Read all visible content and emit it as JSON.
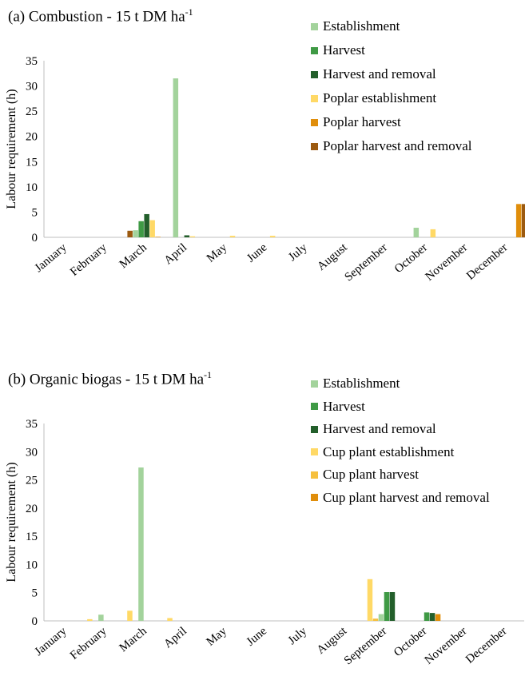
{
  "chart_data": [
    {
      "type": "bar",
      "title_main": "(a) Combustion - 15 t DM ha",
      "title_sup": "-1",
      "ylabel": "Labour requirement (h)",
      "ylim": [
        0,
        35
      ],
      "yticks": [
        "0",
        "5",
        "10",
        "15",
        "20",
        "25",
        "30",
        "35"
      ],
      "categories": [
        "January",
        "February",
        "March",
        "April",
        "May",
        "June",
        "July",
        "August",
        "September",
        "October",
        "November",
        "December"
      ],
      "legend_position": "top-right",
      "series": [
        {
          "name": "Poplar harvest and removal",
          "color": "#9c5a10",
          "values": [
            0,
            0,
            1.3,
            0,
            0,
            0,
            0,
            0,
            0,
            0,
            0,
            0
          ]
        },
        {
          "name": "Establishment",
          "color": "#a3d39c",
          "values": [
            0,
            0,
            1.4,
            31.5,
            0,
            0,
            0,
            0,
            0,
            1.9,
            0,
            0
          ]
        },
        {
          "name": "Harvest",
          "color": "#3f9a45",
          "values": [
            0,
            0,
            3.2,
            0,
            0,
            0,
            0,
            0,
            0,
            0,
            0,
            0
          ]
        },
        {
          "name": "Harvest and removal",
          "color": "#235f2b",
          "values": [
            0,
            0,
            4.6,
            0.4,
            0,
            0,
            0,
            0,
            0,
            0,
            0,
            0
          ]
        },
        {
          "name": "Poplar establishment",
          "color": "#ffd966",
          "values": [
            0,
            0,
            3.4,
            0.2,
            0.3,
            0.3,
            0,
            0,
            0,
            1.6,
            0,
            0
          ]
        },
        {
          "name": "Poplar harvest",
          "color": "#e08e0b",
          "values": [
            0,
            0,
            0.1,
            0,
            0,
            0,
            0,
            0,
            0,
            0,
            0,
            6.6
          ]
        }
      ],
      "plot_order": [
        "Poplar harvest and removal",
        "Establishment",
        "Harvest",
        "Harvest and removal",
        "Poplar establishment",
        "Poplar harvest"
      ],
      "legend_order": [
        "Establishment",
        "Harvest",
        "Harvest and removal",
        "Poplar establishment",
        "Poplar harvest",
        "Poplar harvest and removal"
      ],
      "extra_december_series": "Poplar harvest and removal",
      "extra_december_value": 6.6
    },
    {
      "type": "bar",
      "title_main": "(b) Organic biogas - 15 t DM ha",
      "title_sup": "-1",
      "ylabel": "Labour requirement (h)",
      "ylim": [
        0,
        35
      ],
      "yticks": [
        "0",
        "5",
        "10",
        "15",
        "20",
        "25",
        "30",
        "35"
      ],
      "categories": [
        "January",
        "February",
        "March",
        "April",
        "May",
        "June",
        "July",
        "August",
        "September",
        "October",
        "November",
        "December"
      ],
      "legend_position": "top-right",
      "series": [
        {
          "name": "Cup plant establishment",
          "color": "#ffd966",
          "values": [
            0,
            0.3,
            1.8,
            0.5,
            0,
            0,
            0,
            0,
            7.4,
            0,
            0,
            0
          ]
        },
        {
          "name": "Cup plant harvest",
          "color": "#f6c03e",
          "values": [
            0,
            0,
            0,
            0,
            0,
            0,
            0,
            0,
            0.4,
            0,
            0,
            0
          ]
        },
        {
          "name": "Establishment",
          "color": "#a3d39c",
          "values": [
            0,
            1.1,
            27.2,
            0,
            0,
            0,
            0,
            0,
            1.2,
            0,
            0,
            0
          ]
        },
        {
          "name": "Harvest",
          "color": "#3f9a45",
          "values": [
            0,
            0,
            0,
            0,
            0,
            0,
            0,
            0,
            5.1,
            1.5,
            0,
            0
          ]
        },
        {
          "name": "Harvest and removal",
          "color": "#235f2b",
          "values": [
            0,
            0,
            0,
            0,
            0,
            0,
            0,
            0,
            5.1,
            1.4,
            0,
            0
          ]
        },
        {
          "name": "Cup plant harvest and removal",
          "color": "#e08e0b",
          "values": [
            0,
            0,
            0,
            0,
            0,
            0,
            0,
            0,
            0,
            1.2,
            0,
            0
          ]
        }
      ],
      "legend_order": [
        "Establishment",
        "Harvest",
        "Harvest and removal",
        "Cup plant establishment",
        "Cup plant harvest",
        "Cup plant harvest and removal"
      ]
    }
  ]
}
